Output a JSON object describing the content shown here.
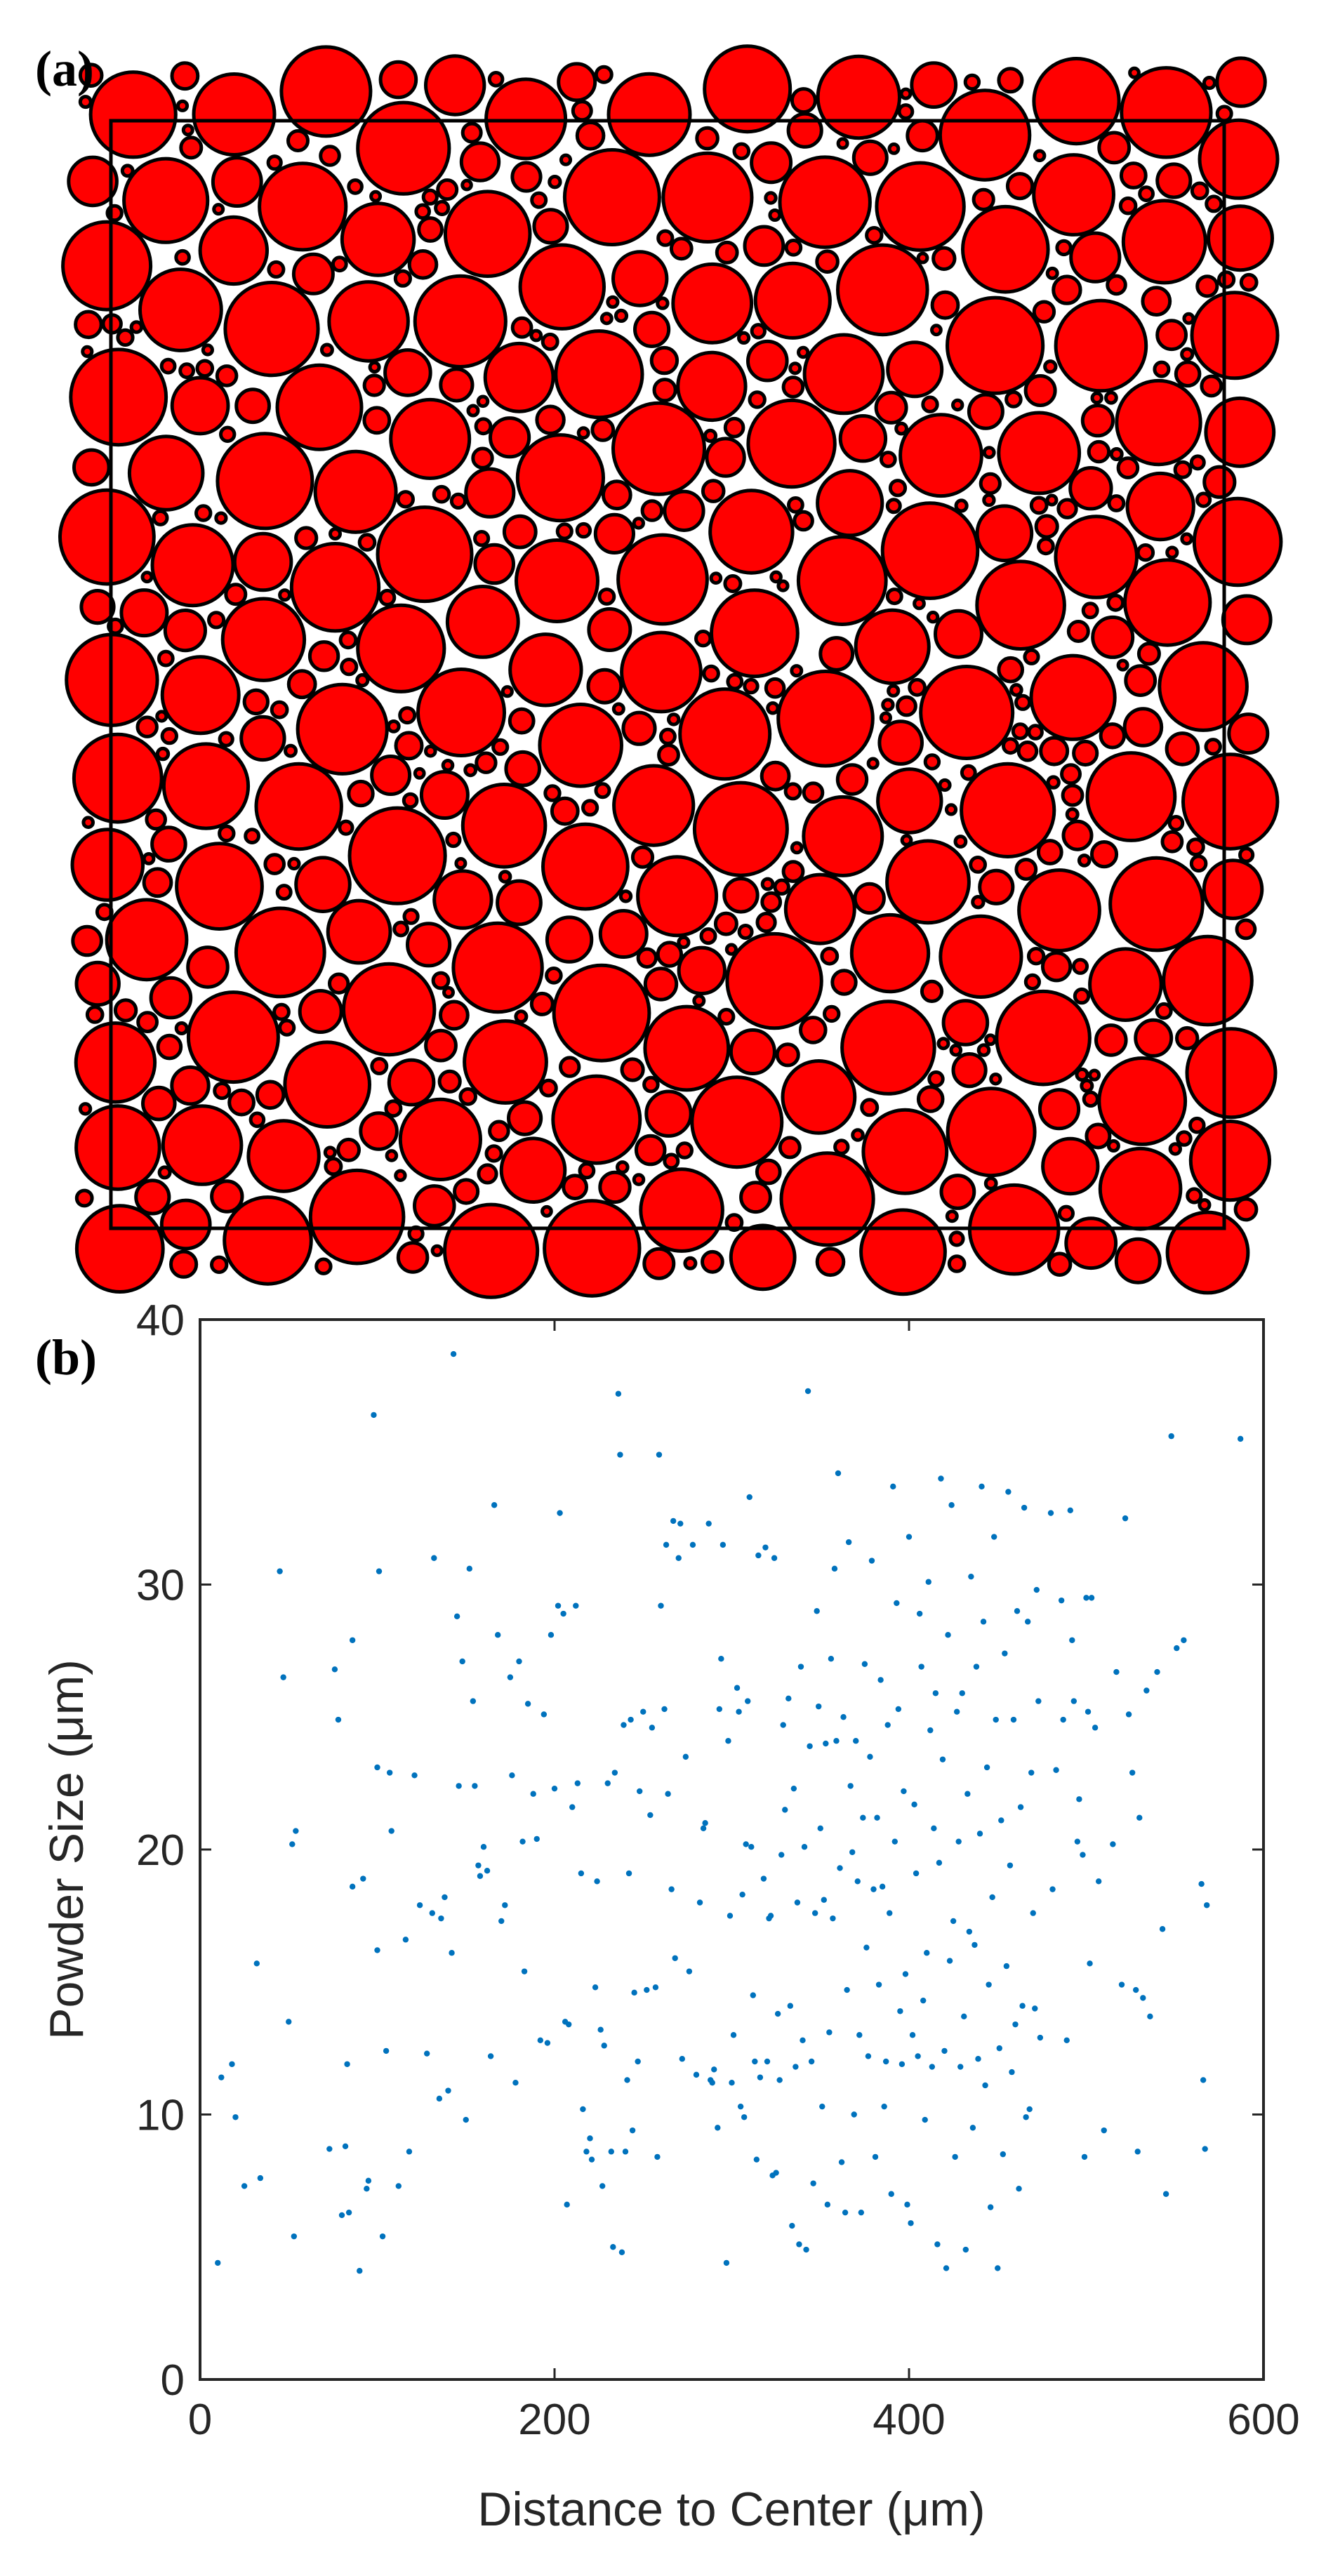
{
  "panels": {
    "a": {
      "label": "(a)"
    },
    "b": {
      "label": "(b)"
    }
  },
  "colors": {
    "particle_fill": "#ff0000",
    "particle_stroke": "#000000",
    "point": "#0072bd",
    "axis": "#262626"
  },
  "chart_data": [
    {
      "type": "packing",
      "panel": "(a)",
      "particle_count_approx": 470,
      "size_range_um": [
        4,
        39
      ],
      "domain_um": 600
    },
    {
      "type": "scatter",
      "panel": "(b)",
      "xlabel": "Distance to Center (μm)",
      "ylabel": "Powder Size (μm)",
      "xlim": [
        0,
        600
      ],
      "ylim": [
        0,
        40
      ],
      "xticks": [
        0,
        200,
        400,
        600
      ],
      "yticks": [
        0,
        10,
        20,
        30,
        40
      ],
      "grid": false,
      "points": [
        [
          10,
          4.4
        ],
        [
          12,
          11.4
        ],
        [
          18,
          11.9
        ],
        [
          20,
          9.9
        ],
        [
          25,
          7.3
        ],
        [
          32,
          15.7
        ],
        [
          34,
          7.6
        ],
        [
          45,
          30.5
        ],
        [
          47,
          26.5
        ],
        [
          50,
          13.5
        ],
        [
          52,
          20.2
        ],
        [
          53,
          5.4
        ],
        [
          54,
          20.7
        ],
        [
          73,
          8.7
        ],
        [
          76,
          26.8
        ],
        [
          78,
          24.9
        ],
        [
          80,
          6.2
        ],
        [
          82,
          8.8
        ],
        [
          83,
          11.9
        ],
        [
          84,
          6.3
        ],
        [
          86,
          27.9
        ],
        [
          86,
          18.6
        ],
        [
          90,
          4.1
        ],
        [
          92,
          18.9
        ],
        [
          94,
          7.2
        ],
        [
          95,
          7.5
        ],
        [
          98,
          36.4
        ],
        [
          100,
          23.1
        ],
        [
          100,
          16.2
        ],
        [
          101,
          30.5
        ],
        [
          103,
          5.4
        ],
        [
          105,
          12.4
        ],
        [
          107,
          22.9
        ],
        [
          108,
          20.7
        ],
        [
          112,
          7.3
        ],
        [
          116,
          16.6
        ],
        [
          118,
          8.6
        ],
        [
          121,
          22.8
        ],
        [
          124,
          17.9
        ],
        [
          128,
          12.3
        ],
        [
          131,
          17.6
        ],
        [
          132,
          31.0
        ],
        [
          135,
          10.6
        ],
        [
          136,
          17.4
        ],
        [
          138,
          18.2
        ],
        [
          140,
          10.9
        ],
        [
          142,
          16.1
        ],
        [
          143,
          38.7
        ],
        [
          145,
          28.8
        ],
        [
          146,
          22.4
        ],
        [
          148,
          27.1
        ],
        [
          150,
          9.8
        ],
        [
          152,
          30.6
        ],
        [
          154,
          25.6
        ],
        [
          155,
          22.4
        ],
        [
          157,
          19.4
        ],
        [
          158,
          19.0
        ],
        [
          160,
          20.1
        ],
        [
          162,
          19.2
        ],
        [
          164,
          12.2
        ],
        [
          166,
          33.0
        ],
        [
          168,
          28.1
        ],
        [
          170,
          17.3
        ],
        [
          172,
          17.9
        ],
        [
          175,
          26.5
        ],
        [
          176,
          22.8
        ],
        [
          178,
          11.2
        ],
        [
          180,
          27.1
        ],
        [
          182,
          20.3
        ],
        [
          183,
          15.4
        ],
        [
          185,
          25.5
        ],
        [
          188,
          22.1
        ],
        [
          190,
          20.4
        ],
        [
          192,
          12.8
        ],
        [
          194,
          25.1
        ],
        [
          196,
          12.7
        ],
        [
          198,
          28.1
        ],
        [
          200,
          22.3
        ],
        [
          202,
          29.2
        ],
        [
          203,
          32.7
        ],
        [
          205,
          28.9
        ],
        [
          206,
          13.5
        ],
        [
          207,
          6.6
        ],
        [
          208,
          13.4
        ],
        [
          210,
          21.6
        ],
        [
          212,
          29.2
        ],
        [
          213,
          22.5
        ],
        [
          215,
          19.1
        ],
        [
          216,
          10.2
        ],
        [
          218,
          8.6
        ],
        [
          220,
          9.1
        ],
        [
          221,
          8.3
        ],
        [
          223,
          14.8
        ],
        [
          224,
          18.8
        ],
        [
          226,
          13.2
        ],
        [
          227,
          7.3
        ],
        [
          228,
          12.6
        ],
        [
          230,
          22.5
        ],
        [
          232,
          8.6
        ],
        [
          233,
          5.0
        ],
        [
          234,
          22.9
        ],
        [
          236,
          37.2
        ],
        [
          237,
          34.9
        ],
        [
          238,
          4.8
        ],
        [
          239,
          24.7
        ],
        [
          240,
          8.6
        ],
        [
          241,
          11.3
        ],
        [
          242,
          19.1
        ],
        [
          243,
          24.9
        ],
        [
          244,
          9.4
        ],
        [
          245,
          14.6
        ],
        [
          247,
          12.0
        ],
        [
          248,
          22.2
        ],
        [
          250,
          25.2
        ],
        [
          252,
          14.7
        ],
        [
          254,
          21.3
        ],
        [
          255,
          24.6
        ],
        [
          257,
          14.8
        ],
        [
          258,
          8.4
        ],
        [
          259,
          34.9
        ],
        [
          260,
          29.2
        ],
        [
          262,
          25.3
        ],
        [
          263,
          31.5
        ],
        [
          264,
          22.1
        ],
        [
          266,
          18.5
        ],
        [
          267,
          32.4
        ],
        [
          268,
          15.9
        ],
        [
          270,
          31.0
        ],
        [
          271,
          32.3
        ],
        [
          272,
          12.1
        ],
        [
          274,
          23.5
        ],
        [
          276,
          15.4
        ],
        [
          278,
          31.5
        ],
        [
          280,
          11.5
        ],
        [
          282,
          18.0
        ],
        [
          284,
          20.8
        ],
        [
          285,
          21.0
        ],
        [
          287,
          32.3
        ],
        [
          288,
          11.3
        ],
        [
          289,
          11.2
        ],
        [
          290,
          11.7
        ],
        [
          292,
          9.5
        ],
        [
          293,
          25.3
        ],
        [
          294,
          27.2
        ],
        [
          295,
          31.5
        ],
        [
          297,
          4.4
        ],
        [
          298,
          24.1
        ],
        [
          299,
          17.5
        ],
        [
          300,
          11.2
        ],
        [
          301,
          13.0
        ],
        [
          303,
          26.1
        ],
        [
          304,
          25.2
        ],
        [
          305,
          10.3
        ],
        [
          306,
          18.3
        ],
        [
          307,
          9.9
        ],
        [
          308,
          20.2
        ],
        [
          309,
          25.6
        ],
        [
          310,
          33.3
        ],
        [
          311,
          20.1
        ],
        [
          312,
          14.5
        ],
        [
          313,
          12.0
        ],
        [
          314,
          8.3
        ],
        [
          315,
          31.1
        ],
        [
          316,
          11.4
        ],
        [
          318,
          18.9
        ],
        [
          319,
          31.4
        ],
        [
          320,
          12.0
        ],
        [
          321,
          17.4
        ],
        [
          322,
          17.5
        ],
        [
          323,
          7.7
        ],
        [
          324,
          31.0
        ],
        [
          325,
          7.8
        ],
        [
          326,
          13.8
        ],
        [
          327,
          11.3
        ],
        [
          328,
          19.8
        ],
        [
          329,
          24.7
        ],
        [
          330,
          21.5
        ],
        [
          332,
          25.7
        ],
        [
          333,
          14.1
        ],
        [
          334,
          5.8
        ],
        [
          335,
          22.3
        ],
        [
          336,
          11.8
        ],
        [
          337,
          18.0
        ],
        [
          338,
          5.1
        ],
        [
          339,
          26.9
        ],
        [
          340,
          12.8
        ],
        [
          341,
          20.1
        ],
        [
          342,
          4.9
        ],
        [
          343,
          37.3
        ],
        [
          344,
          23.9
        ],
        [
          345,
          12.0
        ],
        [
          346,
          7.4
        ],
        [
          347,
          17.6
        ],
        [
          348,
          29.0
        ],
        [
          349,
          25.4
        ],
        [
          350,
          20.8
        ],
        [
          351,
          10.3
        ],
        [
          352,
          18.1
        ],
        [
          353,
          24.0
        ],
        [
          354,
          6.6
        ],
        [
          355,
          13.1
        ],
        [
          356,
          27.2
        ],
        [
          357,
          17.4
        ],
        [
          358,
          30.6
        ],
        [
          359,
          24.1
        ],
        [
          360,
          34.2
        ],
        [
          361,
          19.3
        ],
        [
          362,
          8.2
        ],
        [
          363,
          25.0
        ],
        [
          364,
          6.3
        ],
        [
          365,
          14.7
        ],
        [
          366,
          31.6
        ],
        [
          367,
          22.4
        ],
        [
          368,
          19.9
        ],
        [
          369,
          10.0
        ],
        [
          370,
          24.1
        ],
        [
          371,
          18.8
        ],
        [
          372,
          13.0
        ],
        [
          373,
          6.3
        ],
        [
          374,
          21.2
        ],
        [
          375,
          27.0
        ],
        [
          376,
          16.3
        ],
        [
          377,
          12.2
        ],
        [
          378,
          23.5
        ],
        [
          379,
          30.9
        ],
        [
          380,
          18.5
        ],
        [
          381,
          8.4
        ],
        [
          382,
          21.2
        ],
        [
          383,
          14.9
        ],
        [
          384,
          26.4
        ],
        [
          385,
          18.6
        ],
        [
          386,
          10.3
        ],
        [
          387,
          12.0
        ],
        [
          388,
          24.7
        ],
        [
          389,
          17.6
        ],
        [
          390,
          7.0
        ],
        [
          391,
          33.7
        ],
        [
          392,
          20.3
        ],
        [
          393,
          29.3
        ],
        [
          394,
          25.3
        ],
        [
          395,
          13.9
        ],
        [
          396,
          11.9
        ],
        [
          397,
          22.2
        ],
        [
          398,
          15.3
        ],
        [
          399,
          6.6
        ],
        [
          400,
          31.8
        ],
        [
          401,
          5.9
        ],
        [
          402,
          13.0
        ],
        [
          403,
          21.7
        ],
        [
          404,
          19.1
        ],
        [
          405,
          12.2
        ],
        [
          406,
          28.9
        ],
        [
          407,
          26.9
        ],
        [
          408,
          14.3
        ],
        [
          409,
          9.8
        ],
        [
          410,
          16.1
        ],
        [
          411,
          30.1
        ],
        [
          412,
          24.5
        ],
        [
          413,
          11.8
        ],
        [
          414,
          20.8
        ],
        [
          415,
          25.9
        ],
        [
          416,
          5.1
        ],
        [
          417,
          19.5
        ],
        [
          418,
          34.0
        ],
        [
          419,
          23.4
        ],
        [
          420,
          12.4
        ],
        [
          421,
          4.2
        ],
        [
          422,
          28.1
        ],
        [
          423,
          15.8
        ],
        [
          424,
          33.0
        ],
        [
          425,
          17.3
        ],
        [
          426,
          8.4
        ],
        [
          427,
          25.2
        ],
        [
          428,
          20.3
        ],
        [
          429,
          11.8
        ],
        [
          430,
          25.9
        ],
        [
          431,
          13.7
        ],
        [
          432,
          4.9
        ],
        [
          433,
          22.1
        ],
        [
          434,
          16.9
        ],
        [
          435,
          30.3
        ],
        [
          436,
          9.5
        ],
        [
          437,
          16.4
        ],
        [
          438,
          26.9
        ],
        [
          439,
          12.1
        ],
        [
          440,
          20.6
        ],
        [
          441,
          33.7
        ],
        [
          442,
          28.6
        ],
        [
          443,
          11.1
        ],
        [
          444,
          23.1
        ],
        [
          445,
          14.9
        ],
        [
          446,
          6.5
        ],
        [
          447,
          18.2
        ],
        [
          448,
          31.8
        ],
        [
          449,
          24.9
        ],
        [
          450,
          4.2
        ],
        [
          451,
          12.5
        ],
        [
          452,
          21.1
        ],
        [
          453,
          8.5
        ],
        [
          454,
          27.4
        ],
        [
          455,
          15.6
        ],
        [
          456,
          33.5
        ],
        [
          457,
          19.4
        ],
        [
          458,
          11.6
        ],
        [
          459,
          24.9
        ],
        [
          460,
          13.4
        ],
        [
          461,
          29.0
        ],
        [
          462,
          7.2
        ],
        [
          463,
          21.6
        ],
        [
          464,
          14.1
        ],
        [
          465,
          32.9
        ],
        [
          466,
          9.9
        ],
        [
          467,
          28.6
        ],
        [
          468,
          10.2
        ],
        [
          469,
          22.9
        ],
        [
          470,
          17.6
        ],
        [
          471,
          14.0
        ],
        [
          472,
          29.8
        ],
        [
          473,
          25.6
        ],
        [
          474,
          12.9
        ],
        [
          480,
          32.7
        ],
        [
          481,
          18.5
        ],
        [
          483,
          23.0
        ],
        [
          486,
          29.4
        ],
        [
          487,
          24.9
        ],
        [
          489,
          12.8
        ],
        [
          491,
          32.8
        ],
        [
          492,
          27.9
        ],
        [
          493,
          25.6
        ],
        [
          495,
          20.3
        ],
        [
          496,
          21.9
        ],
        [
          498,
          19.8
        ],
        [
          499,
          8.4
        ],
        [
          500,
          29.5
        ],
        [
          501,
          25.2
        ],
        [
          502,
          15.7
        ],
        [
          503,
          29.5
        ],
        [
          505,
          24.6
        ],
        [
          507,
          18.8
        ],
        [
          510,
          9.4
        ],
        [
          515,
          20.2
        ],
        [
          517,
          26.7
        ],
        [
          520,
          14.9
        ],
        [
          522,
          32.5
        ],
        [
          524,
          25.1
        ],
        [
          526,
          22.9
        ],
        [
          528,
          14.7
        ],
        [
          529,
          8.6
        ],
        [
          530,
          21.2
        ],
        [
          532,
          14.4
        ],
        [
          534,
          26.0
        ],
        [
          536,
          13.7
        ],
        [
          540,
          26.7
        ],
        [
          543,
          17.0
        ],
        [
          545,
          7.0
        ],
        [
          548,
          35.6
        ],
        [
          551,
          27.6
        ],
        [
          555,
          27.9
        ],
        [
          565,
          18.7
        ],
        [
          566,
          11.3
        ],
        [
          567,
          8.7
        ],
        [
          568,
          17.9
        ],
        [
          587,
          35.5
        ]
      ]
    }
  ]
}
